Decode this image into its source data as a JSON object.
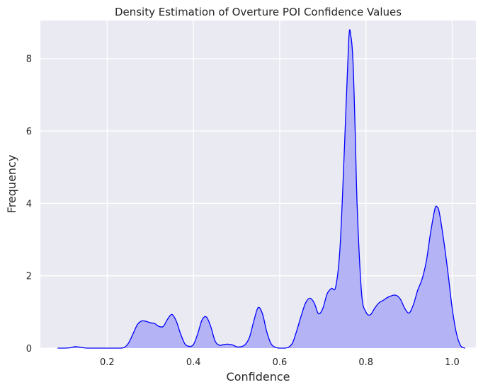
{
  "chart_data": {
    "type": "area",
    "title": "Density Estimation of Overture POI Confidence Values",
    "xlabel": "Confidence",
    "ylabel": "Frequency",
    "xlim": [
      0.045,
      1.055
    ],
    "ylim": [
      0,
      9.05
    ],
    "xticks": [
      0.2,
      0.4,
      0.6,
      0.8,
      1.0
    ],
    "xtick_labels": [
      "0.2",
      "0.4",
      "0.6",
      "0.8",
      "1.0"
    ],
    "yticks": [
      0,
      2,
      4,
      6,
      8
    ],
    "ytick_labels": [
      "0",
      "2",
      "4",
      "6",
      "8"
    ],
    "grid": true,
    "legend": "none",
    "colors": {
      "background": "#eaeaf2",
      "grid": "#ffffff",
      "line": "#0000ff",
      "fill": "#b0b0f5"
    },
    "series": [
      {
        "x": [
          0.085,
          0.1,
          0.115,
          0.125,
          0.135,
          0.145,
          0.155,
          0.17,
          0.19,
          0.21,
          0.23,
          0.24,
          0.25,
          0.26,
          0.27,
          0.28,
          0.29,
          0.3,
          0.31,
          0.32,
          0.33,
          0.34,
          0.35,
          0.36,
          0.37,
          0.38,
          0.39,
          0.4,
          0.41,
          0.42,
          0.43,
          0.44,
          0.45,
          0.46,
          0.47,
          0.48,
          0.49,
          0.5,
          0.51,
          0.52,
          0.53,
          0.54,
          0.55,
          0.56,
          0.57,
          0.58,
          0.59,
          0.6,
          0.61,
          0.62,
          0.63,
          0.64,
          0.65,
          0.66,
          0.67,
          0.68,
          0.69,
          0.7,
          0.71,
          0.72,
          0.73,
          0.74,
          0.75,
          0.76,
          0.765,
          0.77,
          0.775,
          0.78,
          0.79,
          0.8,
          0.81,
          0.82,
          0.83,
          0.84,
          0.85,
          0.86,
          0.87,
          0.88,
          0.89,
          0.9,
          0.91,
          0.92,
          0.93,
          0.94,
          0.95,
          0.96,
          0.965,
          0.97,
          0.98,
          0.99,
          1.0,
          1.01,
          1.02,
          1.03
        ],
        "y": [
          0,
          0,
          0.01,
          0.04,
          0.03,
          0.01,
          0,
          0,
          0,
          0,
          0,
          0.02,
          0.15,
          0.4,
          0.65,
          0.75,
          0.74,
          0.7,
          0.68,
          0.6,
          0.6,
          0.8,
          0.93,
          0.75,
          0.4,
          0.12,
          0.05,
          0.1,
          0.4,
          0.78,
          0.86,
          0.6,
          0.2,
          0.08,
          0.1,
          0.11,
          0.09,
          0.04,
          0.04,
          0.1,
          0.3,
          0.75,
          1.12,
          0.95,
          0.45,
          0.12,
          0.02,
          0,
          0,
          0.02,
          0.15,
          0.5,
          0.9,
          1.25,
          1.38,
          1.25,
          0.95,
          1.1,
          1.5,
          1.65,
          1.7,
          2.8,
          5.5,
          8.5,
          8.62,
          7.9,
          6.0,
          3.8,
          1.5,
          1.0,
          0.92,
          1.1,
          1.25,
          1.32,
          1.4,
          1.45,
          1.46,
          1.35,
          1.1,
          0.97,
          1.2,
          1.6,
          1.9,
          2.4,
          3.2,
          3.85,
          3.9,
          3.75,
          3.0,
          2.1,
          1.1,
          0.4,
          0.06,
          0
        ]
      }
    ]
  }
}
